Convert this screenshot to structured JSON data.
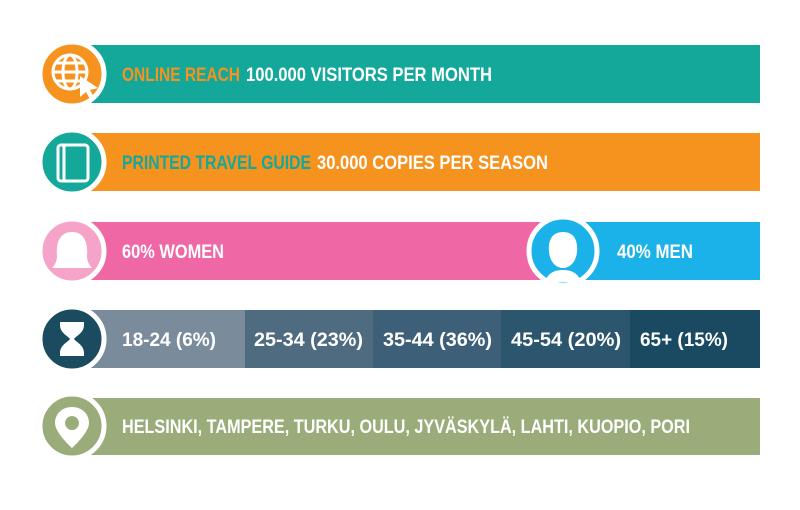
{
  "rows": [
    {
      "highlight": "ONLINE REACH",
      "text": "100.000 VISITORS PER MONTH"
    },
    {
      "highlight": "PRINTED TRAVEL GUIDE",
      "text": "30.000 COPIES PER SEASON"
    }
  ],
  "gender": {
    "women": "60% WOMEN",
    "men": "40% MEN"
  },
  "age_groups": [
    "18-24 (6%)",
    "25-34 (23%)",
    "35-44 (36%)",
    "45-54 (20%)",
    "65+ (15%)"
  ],
  "cities": "HELSINKI, TAMPERE, TURKU, OULU, JYVÄSKYLÄ, LAHTI, KUOPIO, PORI"
}
